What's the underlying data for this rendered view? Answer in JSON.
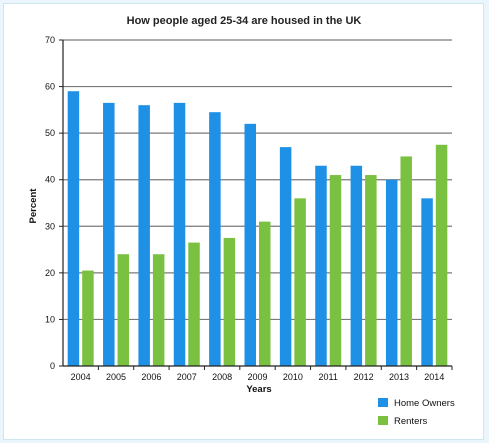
{
  "chart_data": {
    "type": "bar",
    "title": "How people aged 25-34 are housed in the UK",
    "xlabel": "Years",
    "ylabel": "Percent",
    "ylim": [
      0,
      70
    ],
    "yticks": [
      0,
      10,
      20,
      30,
      40,
      50,
      60,
      70
    ],
    "grid": true,
    "legend_position": "bottom-right",
    "categories": [
      "2004",
      "2005",
      "2006",
      "2007",
      "2008",
      "2009",
      "2010",
      "2011",
      "2012",
      "2013",
      "2014"
    ],
    "series": [
      {
        "name": "Home Owners",
        "color": "#1e90e6",
        "values": [
          59,
          56.5,
          56,
          56.5,
          54.5,
          52,
          47,
          43,
          43,
          40,
          36
        ]
      },
      {
        "name": "Renters",
        "color": "#7ac142",
        "values": [
          20.5,
          24,
          24,
          26.5,
          27.5,
          31,
          36,
          41,
          41,
          45,
          47.5
        ]
      }
    ]
  }
}
